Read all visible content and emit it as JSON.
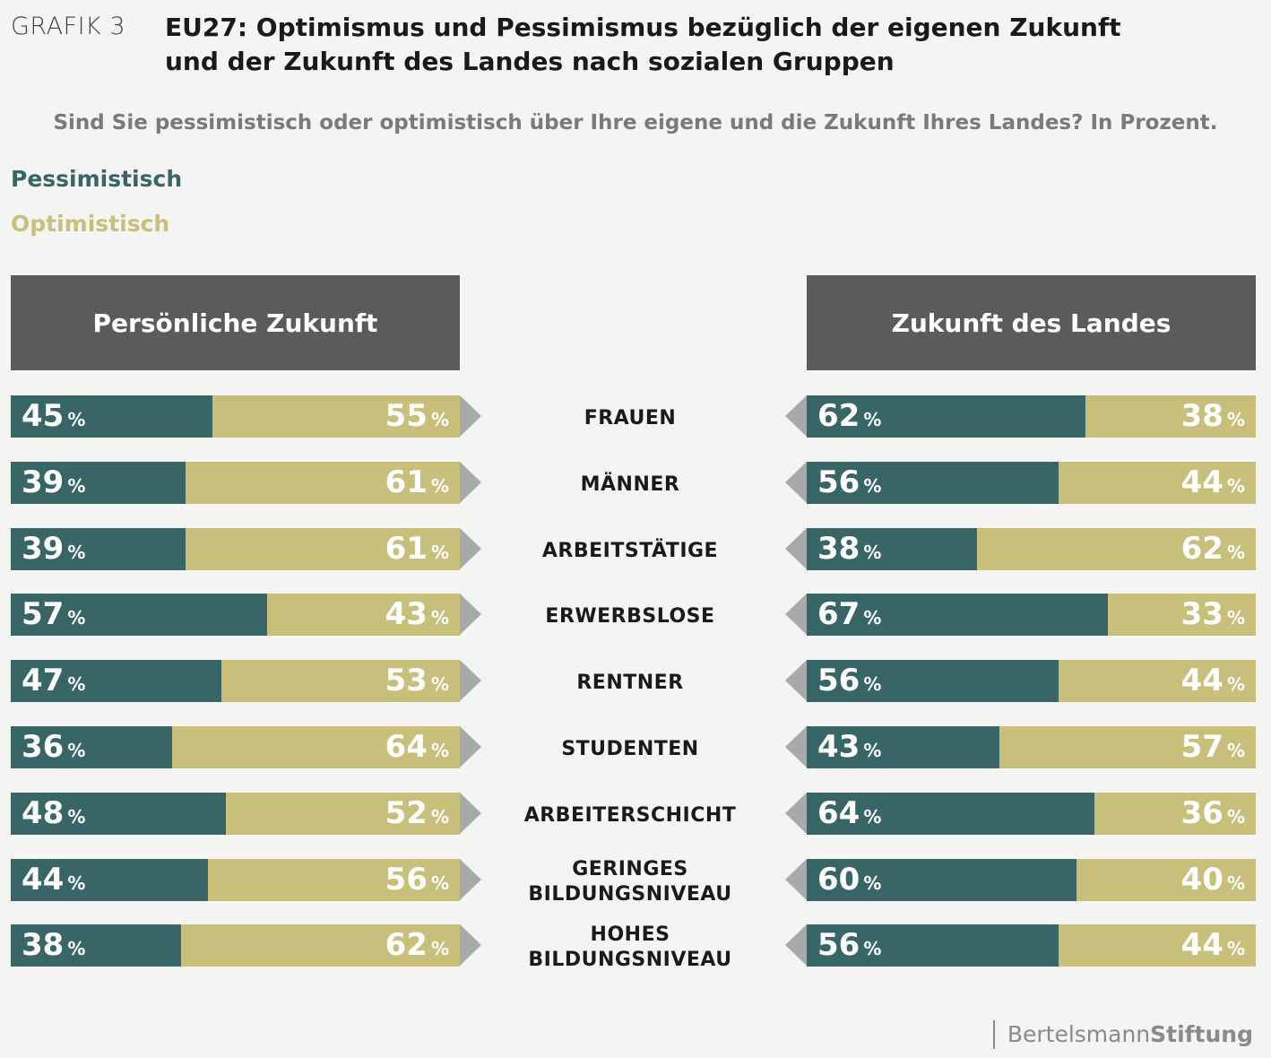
{
  "header": {
    "grafik_label": "GRAFIK 3",
    "title_line1": "EU27: Optimismus und Pessimismus bezüglich der eigenen Zukunft",
    "title_line2": "und der Zukunft des Landes nach sozialen Gruppen",
    "subtitle": "Sind Sie pessimistisch oder optimistisch über Ihre eigene und die Zukunft Ihres Landes? In Prozent."
  },
  "legend": {
    "pessimistic": "Pessimistisch",
    "optimistic": "Optimistisch"
  },
  "colors": {
    "pessimistic": "#386566",
    "optimistic": "#c7bf7a",
    "header_bg": "#5b5b5b",
    "arrow": "#a9a9a9"
  },
  "logo": {
    "part1": "Bertelsmann",
    "part2": "Stiftung"
  },
  "chart_data": {
    "type": "bar",
    "stacked": true,
    "percent_symbol": "%",
    "categories": [
      [
        "FRAUEN"
      ],
      [
        "MÄNNER"
      ],
      [
        "ARBEITSTÄTIGE"
      ],
      [
        "ERWERBSLOSE"
      ],
      [
        "RENTNER"
      ],
      [
        "STUDENTEN"
      ],
      [
        "ARBEITERSCHICHT"
      ],
      [
        "GERINGES",
        "BILDUNGSNIVEAU"
      ],
      [
        "HOHES",
        "BILDUNGSNIVEAU"
      ]
    ],
    "panels": [
      {
        "title": "Persönliche Zukunft",
        "series": [
          {
            "name": "Pessimistisch",
            "values": [
              45,
              39,
              39,
              57,
              47,
              36,
              48,
              44,
              38
            ]
          },
          {
            "name": "Optimistisch",
            "values": [
              55,
              61,
              61,
              43,
              53,
              64,
              52,
              56,
              62
            ]
          }
        ]
      },
      {
        "title": "Zukunft des Landes",
        "series": [
          {
            "name": "Pessimistisch",
            "values": [
              62,
              56,
              38,
              67,
              56,
              43,
              64,
              60,
              56
            ]
          },
          {
            "name": "Optimistisch",
            "values": [
              38,
              44,
              62,
              33,
              44,
              57,
              36,
              40,
              44
            ]
          }
        ]
      }
    ],
    "ylim": [
      0,
      100
    ]
  }
}
